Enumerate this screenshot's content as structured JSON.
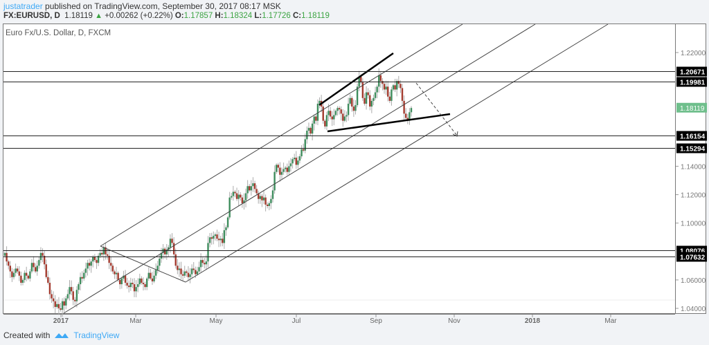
{
  "header": {
    "author": "justatrader",
    "published": "published on TradingView.com, September 30, 2017 08:17 MSK",
    "symbol": "FX:EURUSD, D",
    "last": "1.18119",
    "change": "+0.00262 (+0.22%)",
    "open_label": "O:",
    "open": "1.17857",
    "high_label": "H:",
    "high": "1.18324",
    "low_label": "L:",
    "low": "1.17726",
    "close_label": "C:",
    "close": "1.18119"
  },
  "legend": {
    "title": "Euro Fx/U.S. Dollar, D, FXCM"
  },
  "footer": {
    "created_with": "Created with",
    "brand": "TradingView"
  },
  "colors": {
    "up": "#3d8c5c",
    "down": "#a33a2e",
    "wick": "#aaaaaa",
    "last_price": "#6fbf8c",
    "level_label_bg": "#000000",
    "accent": "#3fa9f5"
  },
  "chart_data": {
    "type": "candlestick",
    "title": "Euro Fx/U.S. Dollar, D, FXCM",
    "symbol": "FX:EURUSD",
    "xlabel": "",
    "ylabel": "",
    "ylim": [
      1.032,
      1.232
    ],
    "y_ticks": [
      "1.22000",
      "1.14000",
      "1.12000",
      "1.10000",
      "1.06000",
      "1.04000"
    ],
    "x_ticks": [
      "2017",
      "Mar",
      "May",
      "Jul",
      "Sep",
      "Nov",
      "2018",
      "Mar"
    ],
    "last_price": "1.18119",
    "horizontal_levels": [
      "1.20671",
      "1.19981",
      "1.16154",
      "1.15294",
      "1.08076",
      "1.07632"
    ],
    "closes": [
      1.079,
      1.073,
      1.07,
      1.066,
      1.062,
      1.065,
      1.068,
      1.066,
      1.063,
      1.058,
      1.06,
      1.065,
      1.063,
      1.061,
      1.066,
      1.072,
      1.069,
      1.066,
      1.07,
      1.074,
      1.079,
      1.077,
      1.071,
      1.062,
      1.058,
      1.05,
      1.047,
      1.045,
      1.041,
      1.043,
      1.04,
      1.039,
      1.045,
      1.042,
      1.047,
      1.05,
      1.055,
      1.052,
      1.046,
      1.045,
      1.053,
      1.057,
      1.062,
      1.061,
      1.065,
      1.068,
      1.072,
      1.07,
      1.073,
      1.076,
      1.074,
      1.072,
      1.077,
      1.079,
      1.078,
      1.083,
      1.078,
      1.077,
      1.072,
      1.07,
      1.066,
      1.064,
      1.065,
      1.06,
      1.057,
      1.061,
      1.063,
      1.058,
      1.056,
      1.055,
      1.058,
      1.057,
      1.052,
      1.055,
      1.057,
      1.061,
      1.058,
      1.057,
      1.055,
      1.061,
      1.065,
      1.061,
      1.059,
      1.063,
      1.067,
      1.07,
      1.075,
      1.079,
      1.082,
      1.078,
      1.081,
      1.083,
      1.089,
      1.086,
      1.078,
      1.07,
      1.067,
      1.068,
      1.064,
      1.063,
      1.066,
      1.065,
      1.062,
      1.064,
      1.068,
      1.067,
      1.064,
      1.066,
      1.069,
      1.074,
      1.072,
      1.071,
      1.073,
      1.086,
      1.09,
      1.089,
      1.091,
      1.092,
      1.089,
      1.088,
      1.089,
      1.086,
      1.095,
      1.097,
      1.104,
      1.118,
      1.119,
      1.122,
      1.121,
      1.117,
      1.12,
      1.118,
      1.114,
      1.116,
      1.121,
      1.126,
      1.123,
      1.126,
      1.128,
      1.124,
      1.121,
      1.117,
      1.119,
      1.116,
      1.118,
      1.113,
      1.112,
      1.114,
      1.117,
      1.123,
      1.136,
      1.141,
      1.139,
      1.134,
      1.136,
      1.138,
      1.139,
      1.136,
      1.14,
      1.142,
      1.145,
      1.146,
      1.141,
      1.144,
      1.147,
      1.152,
      1.151,
      1.159,
      1.165,
      1.167,
      1.163,
      1.17,
      1.175,
      1.172,
      1.184,
      1.186,
      1.182,
      1.172,
      1.168,
      1.176,
      1.179,
      1.175,
      1.173,
      1.176,
      1.179,
      1.181,
      1.18,
      1.177,
      1.172,
      1.175,
      1.176,
      1.184,
      1.188,
      1.182,
      1.179,
      1.183,
      1.196,
      1.203,
      1.199,
      1.188,
      1.184,
      1.192,
      1.19,
      1.182,
      1.186,
      1.188,
      1.192,
      1.196,
      1.204,
      1.2,
      1.198,
      1.194,
      1.196,
      1.189,
      1.186,
      1.194,
      1.197,
      1.194,
      1.2,
      1.198,
      1.195,
      1.186,
      1.177,
      1.174,
      1.172,
      1.178,
      1.181
    ]
  }
}
